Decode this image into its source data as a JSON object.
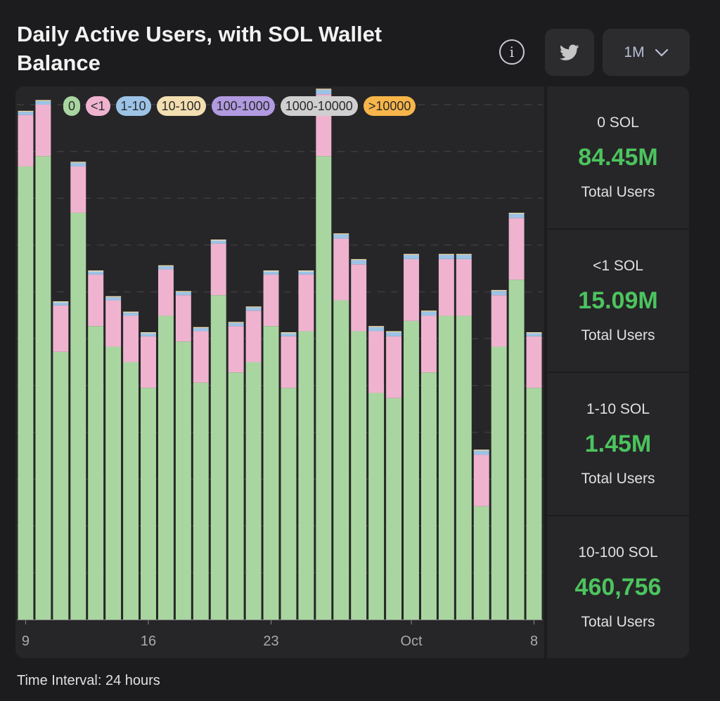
{
  "header": {
    "title": "Daily Active Users, with SOL Wallet Balance",
    "range_label": "1M"
  },
  "icons": {
    "info": "info-icon",
    "twitter": "twitter-icon",
    "dropdown": "chevron-down-icon"
  },
  "colors": {
    "0": "#a9d6a0",
    "<1": "#efb3cf",
    "1-10": "#9cc3e6",
    "10-100": "#f2deb0",
    "100-1000": "#b19ae0",
    "1000-10000": "#cfcfcf",
    ">10000": "#f7b54a"
  },
  "chart_data": {
    "type": "bar",
    "stacked": true,
    "title": "Daily Active Users, with SOL Wallet Balance",
    "xlabel": "",
    "ylabel": "",
    "ylim": [
      0,
      100
    ],
    "grid": true,
    "legend_position": "top",
    "tick_labels": [
      "9",
      "16",
      "23",
      "Oct",
      "8"
    ],
    "tick_positions": [
      0,
      7,
      14,
      22,
      29
    ],
    "categories": [
      "Sep 9",
      "Sep 10",
      "Sep 11",
      "Sep 12",
      "Sep 13",
      "Sep 14",
      "Sep 15",
      "Sep 16",
      "Sep 17",
      "Sep 18",
      "Sep 19",
      "Sep 20",
      "Sep 21",
      "Sep 22",
      "Sep 23",
      "Sep 24",
      "Sep 25",
      "Sep 26",
      "Sep 27",
      "Sep 28",
      "Sep 29",
      "Sep 30",
      "Oct 1",
      "Oct 2",
      "Oct 3",
      "Oct 4",
      "Oct 5",
      "Oct 6",
      "Oct 7",
      "Oct 8"
    ],
    "series": [
      {
        "name": "0",
        "values": [
          88,
          90,
          52,
          79,
          57,
          53,
          50,
          45,
          59,
          54,
          46,
          63,
          48,
          50,
          57,
          45,
          56,
          90,
          62,
          56,
          44,
          43,
          58,
          48,
          59,
          59,
          22,
          53,
          66,
          45
        ]
      },
      {
        "name": "<1",
        "values": [
          10,
          10,
          9,
          9,
          10,
          9,
          9,
          10,
          9,
          9,
          10,
          10,
          9,
          10,
          10,
          10,
          11,
          12,
          12,
          13,
          12,
          12,
          12,
          11,
          11,
          11,
          10,
          10,
          12,
          10
        ]
      },
      {
        "name": "1-10",
        "values": [
          0.6,
          0.7,
          0.6,
          0.7,
          0.6,
          0.6,
          0.6,
          0.6,
          0.6,
          0.6,
          0.6,
          0.6,
          0.6,
          0.6,
          0.6,
          0.6,
          0.6,
          0.9,
          0.8,
          0.8,
          0.8,
          0.8,
          0.8,
          0.8,
          0.8,
          0.8,
          0.8,
          0.8,
          0.8,
          0.6
        ]
      },
      {
        "name": "10-100",
        "values": [
          0.2,
          0.2,
          0.2,
          0.2,
          0.2,
          0.2,
          0.2,
          0.2,
          0.2,
          0.2,
          0.2,
          0.2,
          0.2,
          0.2,
          0.2,
          0.2,
          0.2,
          0.2,
          0.2,
          0.2,
          0.2,
          0.2,
          0.2,
          0.2,
          0.2,
          0.2,
          0.2,
          0.2,
          0.2,
          0.2
        ]
      },
      {
        "name": "100-1000",
        "values": [
          0,
          0,
          0,
          0,
          0,
          0,
          0,
          0,
          0,
          0,
          0,
          0,
          0,
          0,
          0,
          0,
          0,
          0,
          0,
          0,
          0,
          0,
          0,
          0,
          0,
          0,
          0,
          0,
          0,
          0
        ]
      },
      {
        "name": "1000-10000",
        "values": [
          0,
          0,
          0,
          0,
          0,
          0,
          0,
          0,
          0,
          0,
          0,
          0,
          0,
          0,
          0,
          0,
          0,
          0,
          0,
          0,
          0,
          0,
          0,
          0,
          0,
          0,
          0,
          0,
          0,
          0
        ]
      },
      {
        "name": ">10000",
        "values": [
          0,
          0,
          0,
          0,
          0,
          0,
          0,
          0,
          0,
          0,
          0,
          0,
          0,
          0,
          0,
          0,
          0,
          0,
          0,
          0,
          0,
          0,
          0,
          0,
          0,
          0,
          0,
          0,
          0,
          0
        ]
      }
    ]
  },
  "stats": [
    {
      "label": "0 SOL",
      "value": "84.45M",
      "sub": "Total Users"
    },
    {
      "label": "<1 SOL",
      "value": "15.09M",
      "sub": "Total Users"
    },
    {
      "label": "1-10 SOL",
      "value": "1.45M",
      "sub": "Total Users"
    },
    {
      "label": "10-100 SOL",
      "value": "460,756",
      "sub": "Total Users"
    }
  ],
  "footer": {
    "interval_text": "Time Interval: 24 hours"
  }
}
